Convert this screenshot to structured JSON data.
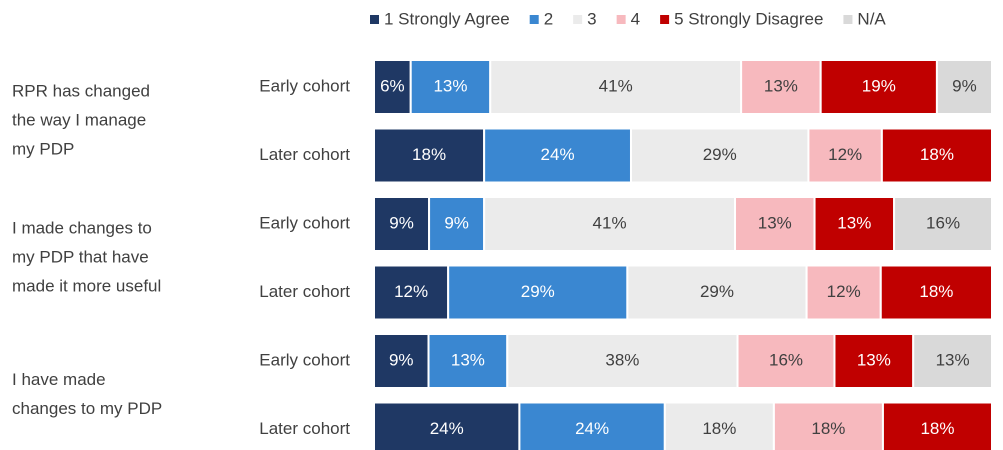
{
  "chart_data": {
    "type": "stacked-bar-100",
    "categories": [
      "Early cohort",
      "Later cohort",
      "Early cohort",
      "Later cohort",
      "Early cohort",
      "Later cohort"
    ],
    "groups": [
      [
        "RPR has changed",
        "the way I manage",
        "my PDP"
      ],
      [
        "I made changes to",
        "my PDP that have",
        "made it more useful"
      ],
      [
        "I have made",
        "changes to my PDP"
      ]
    ],
    "series": [
      {
        "name": "1 Strongly Agree",
        "color": "#1f3864",
        "values": [
          6,
          18,
          9,
          12,
          9,
          24
        ],
        "value_labels": [
          "6%",
          "18%",
          "9%",
          "12%",
          "9%",
          "24%"
        ]
      },
      {
        "name": "2",
        "color": "#3a87d1",
        "values": [
          13,
          24,
          9,
          29,
          13,
          24
        ],
        "value_labels": [
          "13%",
          "24%",
          "9%",
          "29%",
          "13%",
          "24%"
        ]
      },
      {
        "name": "3",
        "color": "#ebebeb",
        "values": [
          41,
          29,
          41,
          29,
          38,
          18
        ],
        "value_labels": [
          "41%",
          "29%",
          "41%",
          "29%",
          "38%",
          "18%"
        ]
      },
      {
        "name": "4",
        "color": "#f7b9be",
        "values": [
          13,
          12,
          13,
          12,
          16,
          18
        ],
        "value_labels": [
          "13%",
          "12%",
          "13%",
          "12%",
          "16%",
          "18%"
        ]
      },
      {
        "name": "5 Strongly Disagree",
        "color": "#c00000",
        "values": [
          19,
          18,
          13,
          18,
          13,
          18
        ],
        "value_labels": [
          "19%",
          "18%",
          "13%",
          "18%",
          "13%",
          "18%"
        ]
      },
      {
        "name": "N/A",
        "color": "#d9d9d9",
        "values": [
          9,
          null,
          16,
          null,
          13,
          null
        ],
        "value_labels": [
          "9%",
          null,
          "16%",
          null,
          "13%",
          null
        ]
      }
    ],
    "legend": "top"
  }
}
